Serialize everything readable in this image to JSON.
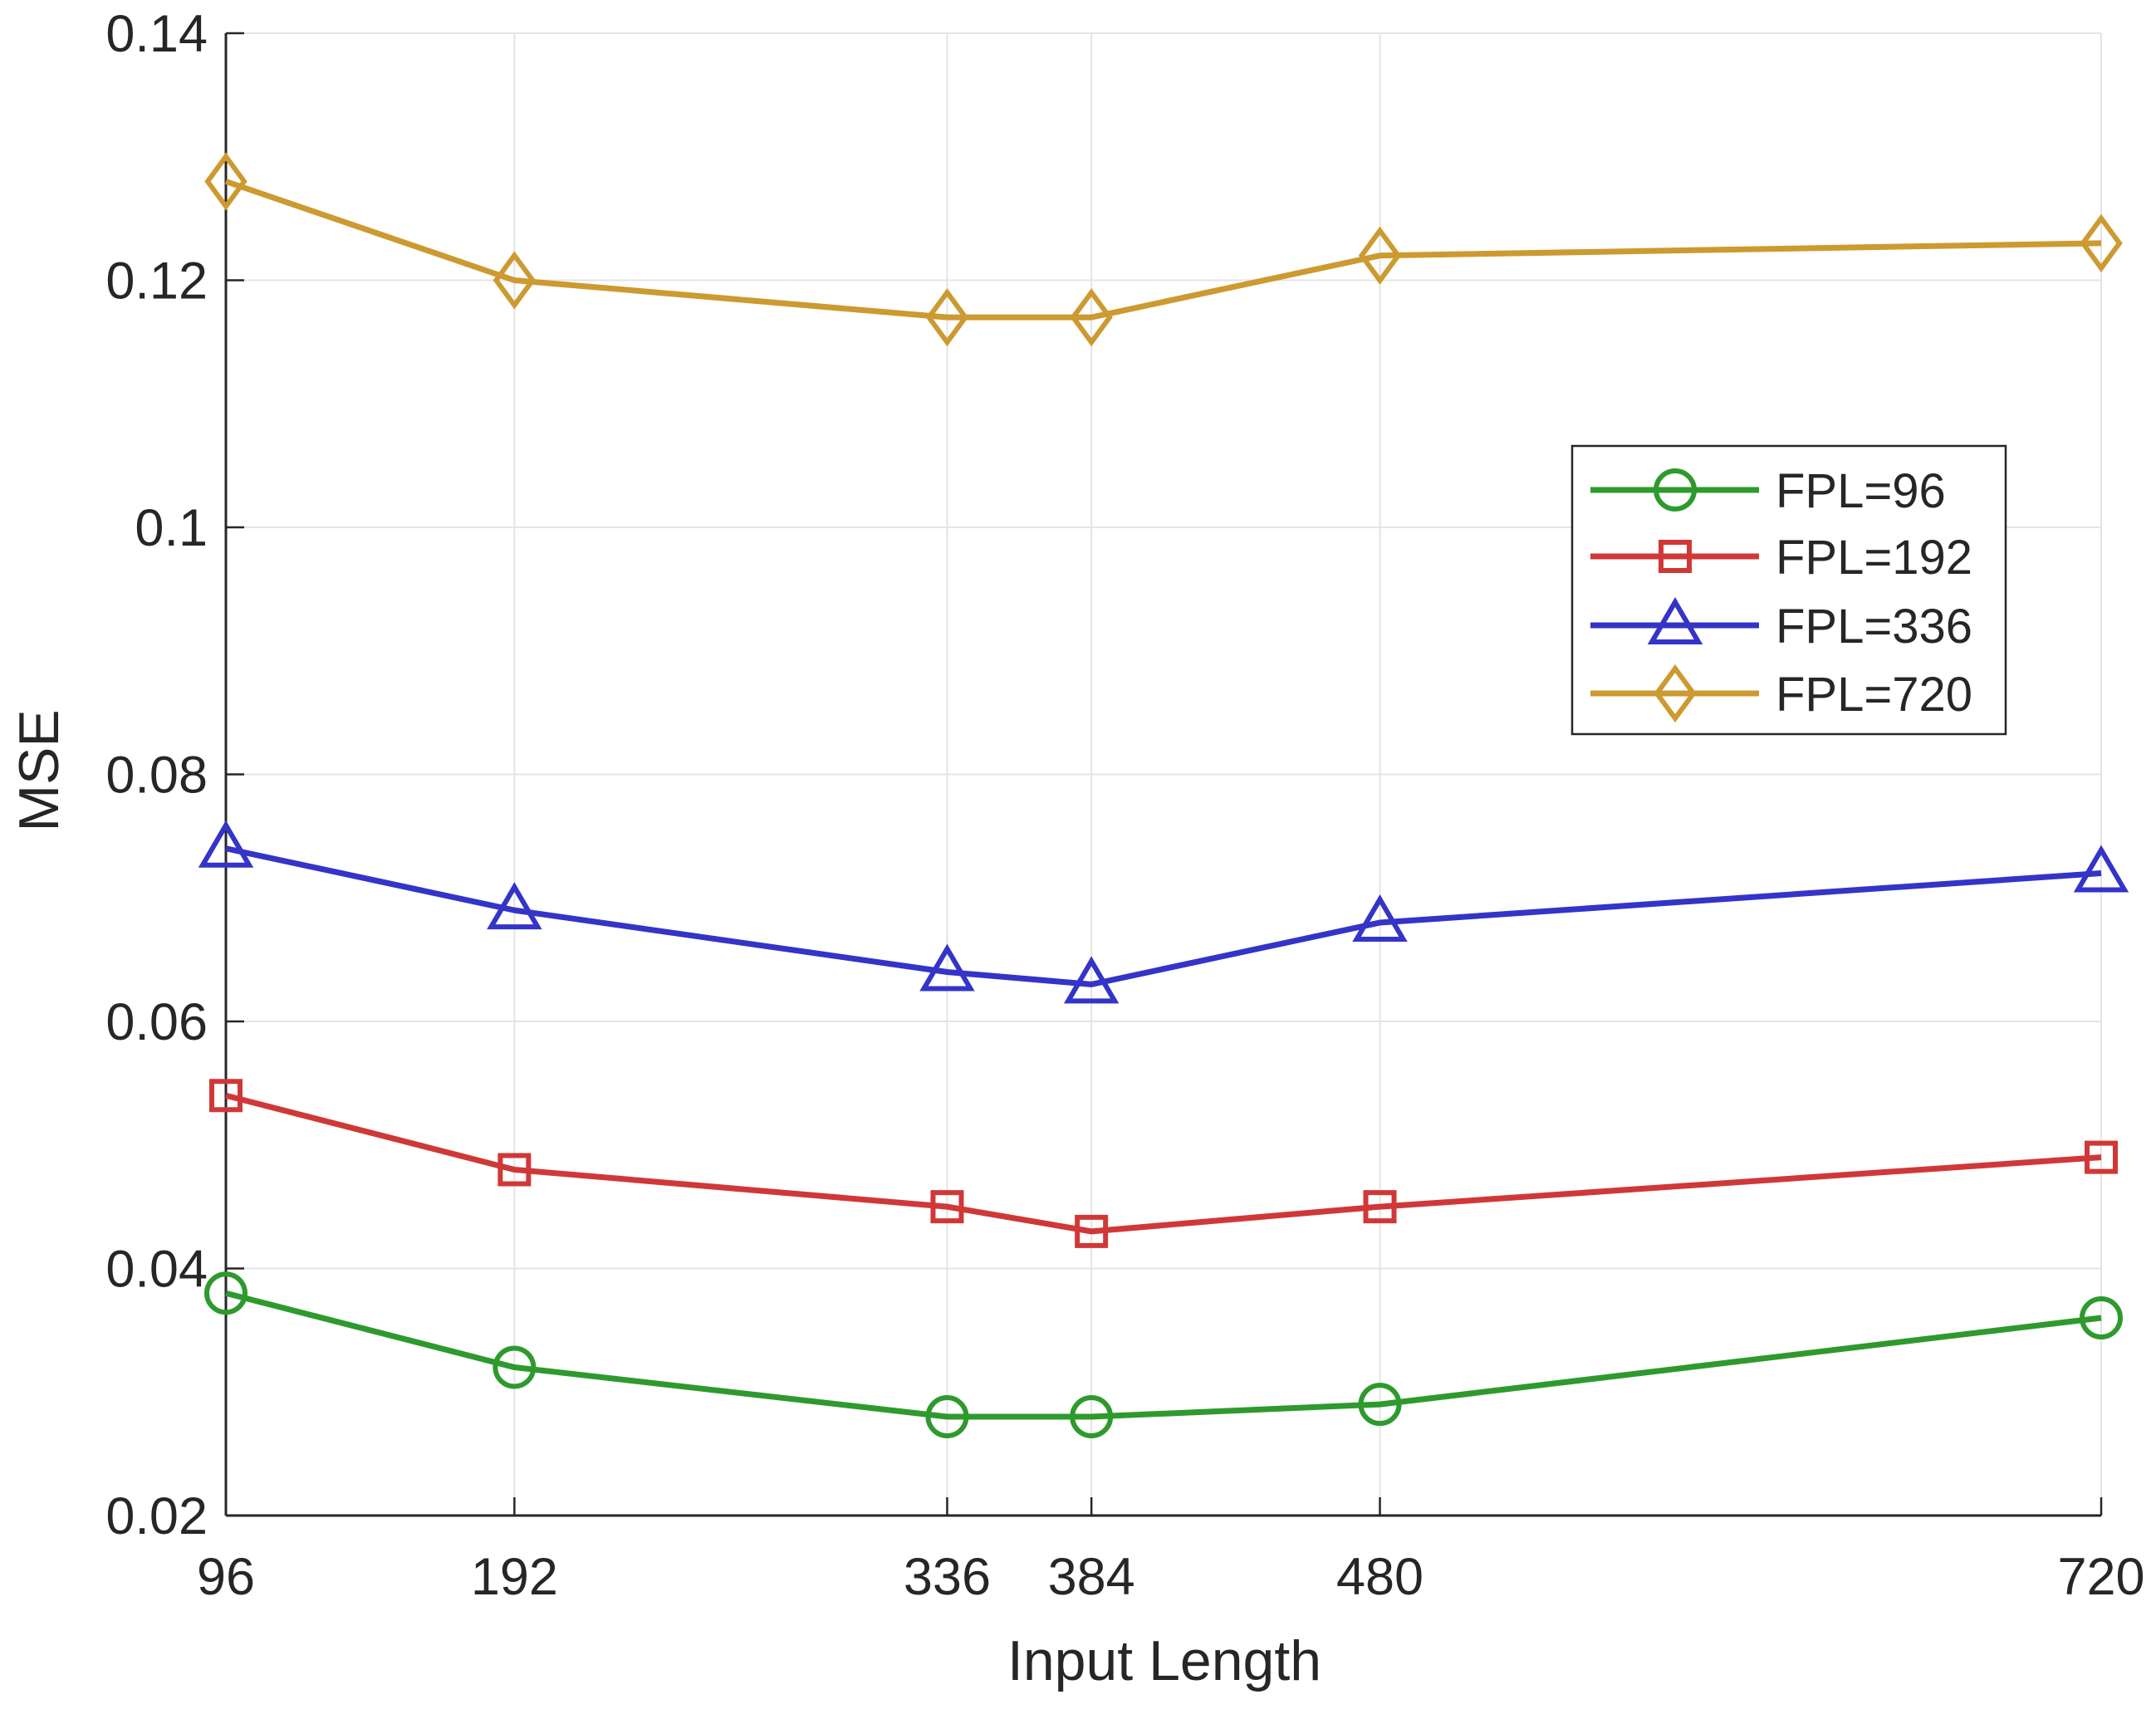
{
  "chart_data": {
    "type": "line",
    "title": "",
    "xlabel": "Input Length",
    "ylabel": "MSE",
    "x": [
      96,
      192,
      336,
      384,
      480,
      720
    ],
    "x_tick_labels": [
      "96",
      "192",
      "336",
      "384",
      "480",
      "720"
    ],
    "xlim": [
      96,
      720
    ],
    "ylim": [
      0.02,
      0.14
    ],
    "y_ticks": [
      0.02,
      0.04,
      0.06,
      0.08,
      0.1,
      0.12,
      0.14
    ],
    "y_tick_labels": [
      "0.02",
      "0.04",
      "0.06",
      "0.08",
      "0.1",
      "0.12",
      "0.14"
    ],
    "grid": true,
    "legend_position": "right, upper-middle",
    "series": [
      {
        "name": "FPL=96",
        "marker": "circle",
        "color": "#2e9a2e",
        "values": [
          0.038,
          0.032,
          0.028,
          0.028,
          0.029,
          0.036
        ]
      },
      {
        "name": "FPL=192",
        "marker": "square",
        "color": "#d03838",
        "values": [
          0.054,
          0.048,
          0.045,
          0.043,
          0.045,
          0.049
        ]
      },
      {
        "name": "FPL=336",
        "marker": "triangle",
        "color": "#3434c8",
        "values": [
          0.074,
          0.069,
          0.064,
          0.063,
          0.068,
          0.072
        ]
      },
      {
        "name": "FPL=720",
        "marker": "diamond",
        "color": "#cc9a30",
        "values": [
          0.128,
          0.12,
          0.117,
          0.117,
          0.122,
          0.123
        ]
      }
    ]
  }
}
